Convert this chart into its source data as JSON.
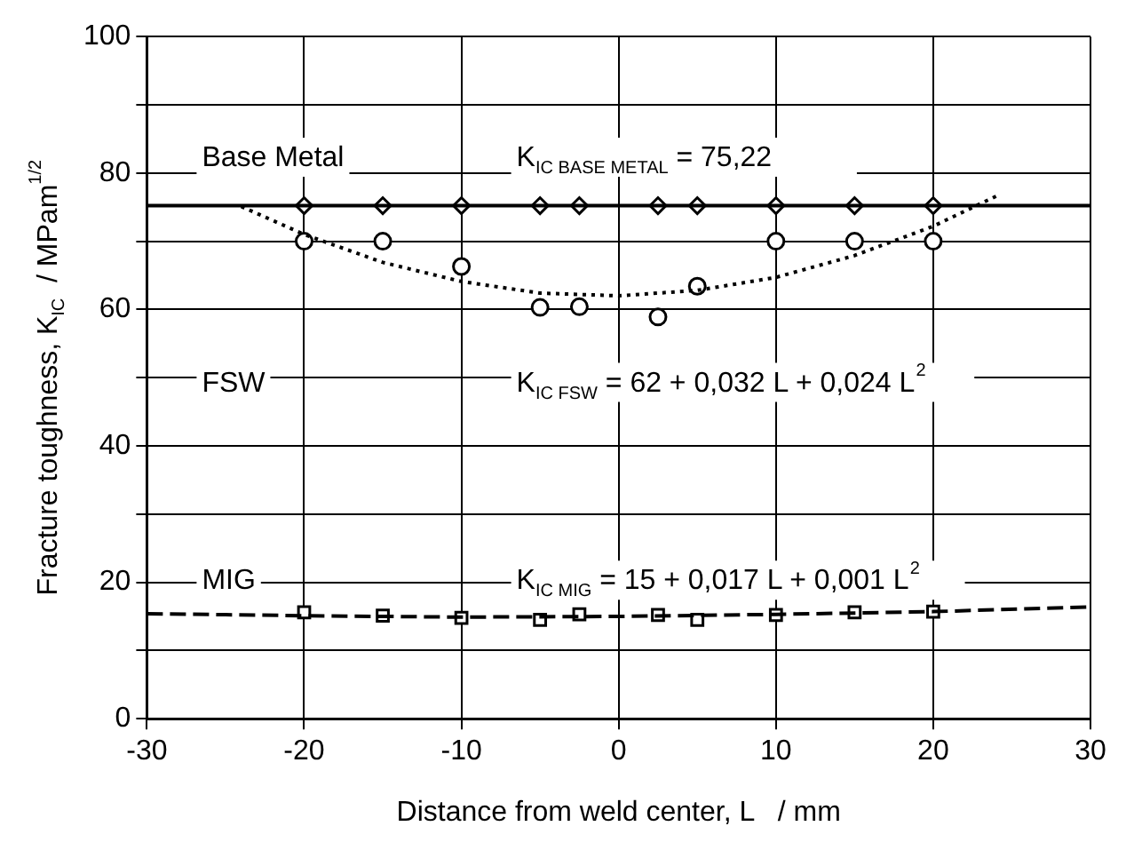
{
  "chart_data": {
    "type": "scatter",
    "xlabel": "Distance from weld center, L   / mm",
    "ylabel": "Fracture toughness, K$_{IC}$  / MPam$^{1/2}$",
    "xlim": [
      -30,
      30
    ],
    "xticks": [
      -30,
      -20,
      -10,
      0,
      10,
      20,
      30
    ],
    "ylim": [
      0,
      100
    ],
    "yticks": [
      0,
      {
        "value": 10,
        "label": null
      },
      20,
      {
        "value": 30,
        "label": null
      },
      40,
      {
        "value": 50,
        "label": null
      },
      60,
      {
        "value": 70,
        "label": null
      },
      80,
      {
        "value": 90,
        "label": null
      },
      100
    ],
    "grid": true,
    "annotations": [
      "Base Metal",
      "K$_{IC BASE METAL}$ = 75,22",
      "FSW",
      "K$_{IC FSW}$ = 62 + 0,032 L + 0,024 L$^{2}$",
      "MIG",
      "K$_{IC MIG}$ = 15 + 0,017 L + 0,001 L$^{2}$"
    ],
    "series": [
      {
        "type": "line",
        "x": [
          -30,
          30
        ],
        "values": [
          75.22,
          75.22
        ],
        "color": "#000000",
        "marker": "none",
        "line_style": "solid"
      },
      {
        "type": "scatter",
        "x": [
          -20,
          -15,
          -10,
          -5,
          -2.5,
          2.5,
          5,
          10,
          15,
          20
        ],
        "values": [
          75.22,
          75.22,
          75.22,
          75.22,
          75.22,
          75.22,
          75.22,
          75.22,
          75.22,
          75.22
        ],
        "color": "#000000",
        "marker": "diamond"
      },
      {
        "type": "line",
        "x": [
          -24,
          -20,
          -15,
          -10,
          -5,
          0,
          5,
          10,
          15,
          20,
          24
        ],
        "values": [
          75.1,
          71.0,
          66.9,
          64.1,
          62.4,
          62.0,
          62.8,
          64.7,
          67.9,
          72.2,
          76.6
        ],
        "color": "#000000",
        "marker": "none",
        "line_style": "dotted"
      },
      {
        "type": "scatter",
        "x": [
          -20,
          -15,
          -10,
          -5,
          -2.5,
          2.5,
          5,
          10,
          15,
          20
        ],
        "values": [
          70,
          70,
          66.3,
          60.3,
          60.4,
          58.9,
          63.4,
          70,
          70,
          70
        ],
        "color": "#000000",
        "marker": "circle"
      },
      {
        "type": "line",
        "x": [
          -30,
          -20,
          -10,
          0,
          10,
          20,
          30
        ],
        "values": [
          15.4,
          15.1,
          14.9,
          15.0,
          15.3,
          15.7,
          16.4
        ],
        "color": "#000000",
        "marker": "none",
        "line_style": "dashed"
      },
      {
        "type": "scatter",
        "x": [
          -20,
          -15,
          -10,
          -5,
          -2.5,
          2.5,
          5,
          10,
          15,
          20
        ],
        "values": [
          15.6,
          15.1,
          14.8,
          14.5,
          15.3,
          15.2,
          14.5,
          15.2,
          15.6,
          15.7
        ],
        "color": "#000000",
        "marker": "square"
      }
    ]
  }
}
